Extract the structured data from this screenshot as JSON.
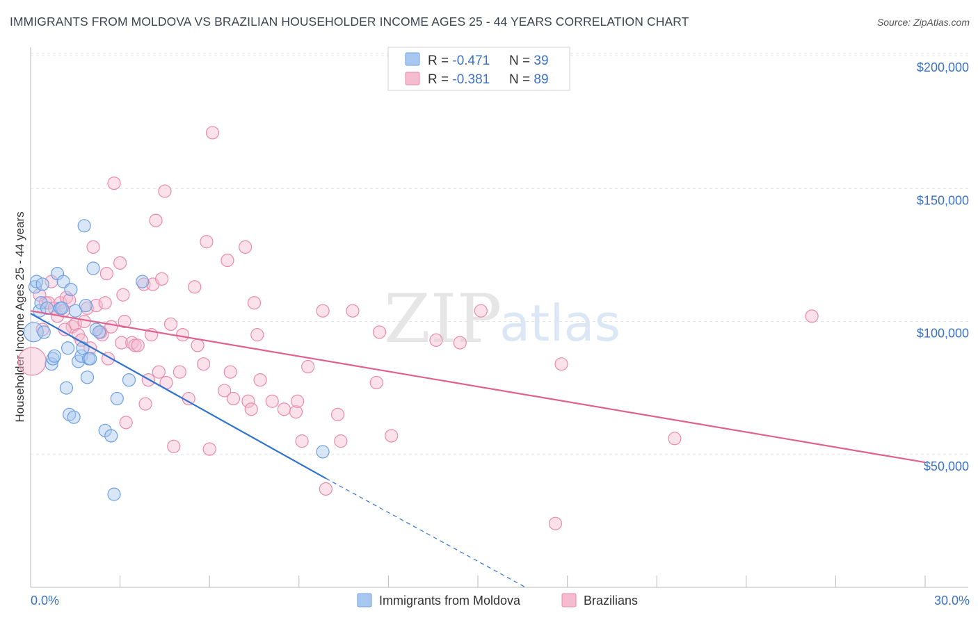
{
  "title": "IMMIGRANTS FROM MOLDOVA VS BRAZILIAN HOUSEHOLDER INCOME AGES 25 - 44 YEARS CORRELATION CHART",
  "source": "Source: ZipAtlas.com",
  "watermark": {
    "zip": "ZIP",
    "atlas": "atlas"
  },
  "colors": {
    "moldova_fill": "#a9c8f0",
    "moldova_stroke": "#6d9fe0",
    "moldova_line": "#2f72d0",
    "brazil_fill": "#f5bcd0",
    "brazil_stroke": "#e98aac",
    "brazil_line": "#e0618e",
    "grid": "#e2e2e2",
    "tick_label": "#3a72c8"
  },
  "legend": {
    "rows": [
      {
        "r_label": "R = ",
        "r_value": "-0.471",
        "n_label": "N = ",
        "n_value": "39"
      },
      {
        "r_label": "R = ",
        "r_value": "-0.381",
        "n_label": "N = ",
        "n_value": "89"
      }
    ]
  },
  "bottom_legend": [
    "Immigrants from Moldova",
    "Brazilians"
  ],
  "chart_data": {
    "type": "scatter",
    "title": "IMMIGRANTS FROM MOLDOVA VS BRAZILIAN HOUSEHOLDER INCOME AGES 25 - 44 YEARS CORRELATION CHART",
    "xlabel": "",
    "ylabel": "Householder Income Ages 25 - 44 years",
    "xlim": [
      0,
      30
    ],
    "ylim": [
      0,
      200000
    ],
    "x_tick_labels": [
      "0.0%",
      "30.0%"
    ],
    "y_ticks": [
      50000,
      100000,
      150000,
      200000
    ],
    "y_tick_labels": [
      "$50,000",
      "$100,000",
      "$150,000",
      "$200,000"
    ],
    "grid": true,
    "legend_position": "top-center",
    "series": [
      {
        "name": "Immigrants from Moldova",
        "R": -0.471,
        "N": 39,
        "trend": {
          "x0": 0.0,
          "y0": 103000,
          "x1": 9.9,
          "y1": 41000,
          "dash_to_x": 16.6,
          "dash_to_y": 0
        },
        "points": [
          [
            0.1,
            96000,
            14
          ],
          [
            0.15,
            113000,
            9
          ],
          [
            0.2,
            115000,
            9
          ],
          [
            0.3,
            104000,
            9
          ],
          [
            0.35,
            107000,
            9
          ],
          [
            0.4,
            114000,
            9
          ],
          [
            0.45,
            96000,
            9
          ],
          [
            0.55,
            105000,
            9
          ],
          [
            0.7,
            84000,
            9
          ],
          [
            0.75,
            86000,
            9
          ],
          [
            0.8,
            87000,
            9
          ],
          [
            0.9,
            118000,
            9
          ],
          [
            1.0,
            105000,
            9
          ],
          [
            1.05,
            105000,
            9
          ],
          [
            1.1,
            115000,
            9
          ],
          [
            1.2,
            75000,
            9
          ],
          [
            1.25,
            90000,
            9
          ],
          [
            1.3,
            65000,
            9
          ],
          [
            1.35,
            112000,
            9
          ],
          [
            1.45,
            64000,
            9
          ],
          [
            1.5,
            104000,
            9
          ],
          [
            1.6,
            85000,
            9
          ],
          [
            1.7,
            87000,
            9
          ],
          [
            1.75,
            90000,
            9
          ],
          [
            1.8,
            136000,
            9
          ],
          [
            1.85,
            106000,
            9
          ],
          [
            1.9,
            79000,
            9
          ],
          [
            1.95,
            86000,
            9
          ],
          [
            2.1,
            120000,
            9
          ],
          [
            2.2,
            97000,
            9
          ],
          [
            2.3,
            96000,
            9
          ],
          [
            2.5,
            59000,
            9
          ],
          [
            2.7,
            57000,
            9
          ],
          [
            2.8,
            35000,
            9
          ],
          [
            2.9,
            71000,
            9
          ],
          [
            3.3,
            78000,
            9
          ],
          [
            3.75,
            115000,
            9
          ],
          [
            9.8,
            51000,
            9
          ],
          [
            2.0,
            86000,
            9
          ]
        ]
      },
      {
        "name": "Brazilians",
        "R": -0.381,
        "N": 89,
        "trend": {
          "x0": 0.0,
          "y0": 104000,
          "x1": 30.0,
          "y1": 47000
        },
        "points": [
          [
            0.05,
            85000,
            20
          ],
          [
            0.3,
            110000,
            9
          ],
          [
            0.4,
            97000,
            9
          ],
          [
            0.5,
            107000,
            9
          ],
          [
            0.6,
            107000,
            9
          ],
          [
            0.7,
            115000,
            9
          ],
          [
            0.8,
            105000,
            9
          ],
          [
            0.9,
            102000,
            9
          ],
          [
            1.0,
            107000,
            9
          ],
          [
            1.1,
            104000,
            9
          ],
          [
            1.2,
            109000,
            9
          ],
          [
            1.3,
            108000,
            9
          ],
          [
            1.4,
            98000,
            9
          ],
          [
            1.5,
            99000,
            9
          ],
          [
            1.6,
            95000,
            9
          ],
          [
            1.7,
            93000,
            9
          ],
          [
            1.8,
            100000,
            9
          ],
          [
            1.9,
            105000,
            9
          ],
          [
            2.0,
            90000,
            9
          ],
          [
            2.1,
            128000,
            9
          ],
          [
            2.2,
            106000,
            9
          ],
          [
            2.4,
            95000,
            9
          ],
          [
            2.5,
            107000,
            9
          ],
          [
            2.55,
            118000,
            9
          ],
          [
            2.6,
            86000,
            9
          ],
          [
            2.7,
            98000,
            9
          ],
          [
            2.8,
            152000,
            9
          ],
          [
            3.0,
            122000,
            9
          ],
          [
            3.05,
            92000,
            9
          ],
          [
            3.1,
            110000,
            9
          ],
          [
            3.15,
            100000,
            9
          ],
          [
            3.2,
            62000,
            9
          ],
          [
            3.4,
            92000,
            9
          ],
          [
            3.5,
            91000,
            9
          ],
          [
            3.6,
            91000,
            9
          ],
          [
            3.8,
            114000,
            9
          ],
          [
            3.85,
            69000,
            9
          ],
          [
            3.95,
            78000,
            9
          ],
          [
            4.05,
            95000,
            9
          ],
          [
            4.1,
            114000,
            9
          ],
          [
            4.2,
            138000,
            9
          ],
          [
            4.3,
            81000,
            9
          ],
          [
            4.4,
            116000,
            9
          ],
          [
            4.5,
            149000,
            9
          ],
          [
            4.55,
            77000,
            9
          ],
          [
            4.7,
            99000,
            9
          ],
          [
            4.8,
            53000,
            9
          ],
          [
            5.0,
            81000,
            9
          ],
          [
            5.1,
            95000,
            9
          ],
          [
            5.3,
            71000,
            9
          ],
          [
            5.5,
            113000,
            9
          ],
          [
            5.6,
            91000,
            9
          ],
          [
            5.8,
            84000,
            9
          ],
          [
            5.9,
            130000,
            9
          ],
          [
            6.0,
            52000,
            9
          ],
          [
            6.1,
            171000,
            9
          ],
          [
            6.5,
            74000,
            9
          ],
          [
            6.6,
            123000,
            9
          ],
          [
            6.7,
            81000,
            9
          ],
          [
            6.8,
            71000,
            9
          ],
          [
            7.2,
            128000,
            9
          ],
          [
            7.3,
            70000,
            9
          ],
          [
            7.4,
            67000,
            9
          ],
          [
            7.5,
            107000,
            9
          ],
          [
            7.6,
            95000,
            9
          ],
          [
            7.7,
            78000,
            9
          ],
          [
            8.1,
            70000,
            9
          ],
          [
            8.5,
            67000,
            9
          ],
          [
            8.9,
            66000,
            9
          ],
          [
            8.95,
            70000,
            9
          ],
          [
            9.1,
            55000,
            9
          ],
          [
            9.3,
            83000,
            9
          ],
          [
            9.8,
            104000,
            9
          ],
          [
            9.9,
            37000,
            9
          ],
          [
            10.3,
            65000,
            9
          ],
          [
            10.4,
            55000,
            9
          ],
          [
            10.8,
            104000,
            9
          ],
          [
            11.6,
            77000,
            9
          ],
          [
            11.7,
            96000,
            9
          ],
          [
            12.1,
            57000,
            9
          ],
          [
            13.6,
            93000,
            9
          ],
          [
            14.4,
            92000,
            9
          ],
          [
            15.1,
            104000,
            9
          ],
          [
            17.6,
            24000,
            9
          ],
          [
            17.8,
            84000,
            9
          ],
          [
            21.6,
            56000,
            9
          ],
          [
            26.2,
            102000,
            9
          ],
          [
            1.15,
            97000,
            9
          ],
          [
            2.35,
            96000,
            9
          ]
        ]
      }
    ]
  }
}
